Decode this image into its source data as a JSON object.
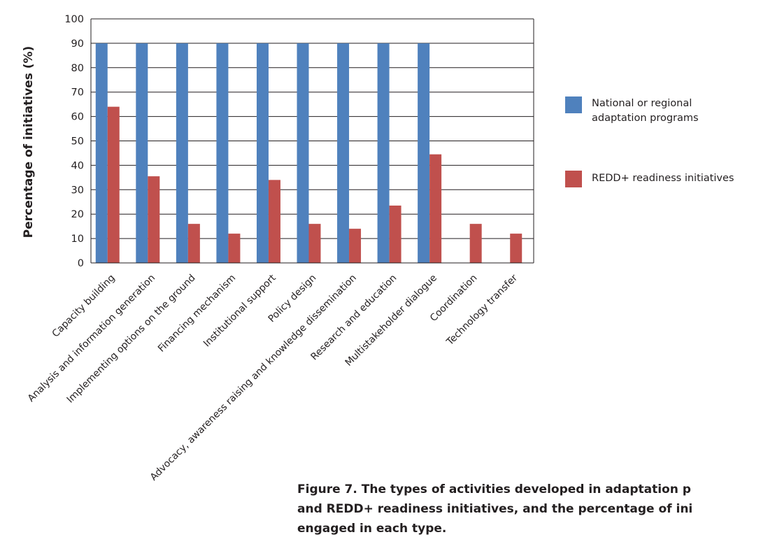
{
  "chart_data": {
    "type": "bar",
    "ylabel": "Percentage of initiatives (%)",
    "xlabel": "",
    "ylim": [
      0,
      100
    ],
    "yticks": [
      0,
      10,
      20,
      30,
      40,
      50,
      60,
      70,
      80,
      90,
      100
    ],
    "grid": true,
    "legend_position": "right",
    "categories": [
      "Capacity building",
      "Analysis and information generation",
      "Implementing options on the ground",
      "Financing mechanism",
      "Institutional support",
      "Policy design",
      "Advocacy, awareness raising and  knowledge dissemination",
      "Research and education",
      "Multistakeholder dialogue",
      "Coordination",
      "Technology transfer"
    ],
    "series": [
      {
        "name": "National or regional adaptation programs",
        "color": "#4f81bd",
        "values": [
          90,
          90,
          90,
          90,
          90,
          90,
          90,
          90,
          90,
          0,
          0
        ]
      },
      {
        "name": "REDD+ readiness initiatives",
        "color": "#c0504d",
        "values": [
          64,
          35.5,
          16,
          12,
          34,
          16,
          14,
          23.5,
          44.5,
          16,
          12
        ]
      }
    ]
  },
  "caption": {
    "line1": "Figure 7.  The types of activities developed in adaptation p",
    "line2": "and REDD+ readiness initiatives, and the percentage of ini",
    "line3": "engaged in each type."
  }
}
